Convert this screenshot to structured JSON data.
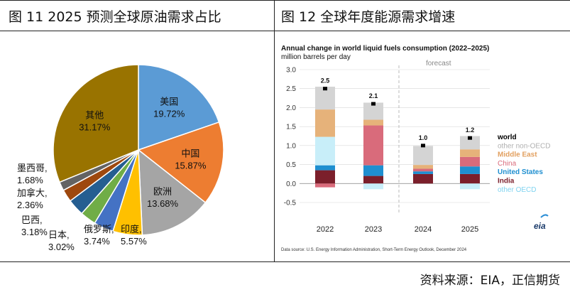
{
  "panels": {
    "left_title": "图 11   2025 预测全球原油需求占比",
    "right_title": "图 12   全球年度能源需求增速"
  },
  "source": "资料来源：EIA，正信期货",
  "chart_data": [
    {
      "type": "pie",
      "slices": [
        {
          "name": "美国",
          "label": "19.72%",
          "value": 19.72,
          "color": "#5b9bd5"
        },
        {
          "name": "中国",
          "label": "15.87%",
          "value": 15.87,
          "color": "#ed7d31"
        },
        {
          "name": "欧洲",
          "label": "13.68%",
          "value": 13.68,
          "color": "#a5a5a5"
        },
        {
          "name": "印度",
          "label": "5.57%",
          "value": 5.57,
          "color": "#ffc000"
        },
        {
          "name": "俄罗斯",
          "label": "3.74%",
          "value": 3.74,
          "color": "#4472c4"
        },
        {
          "name": "日本",
          "label": "3.02%",
          "value": 3.02,
          "color": "#70ad47"
        },
        {
          "name": "巴西",
          "label": "3.18%",
          "value": 3.18,
          "color": "#255e91"
        },
        {
          "name": "加拿大",
          "label": "2.36%",
          "value": 2.36,
          "color": "#9e480e"
        },
        {
          "name": "墨西哥",
          "label": "1.68%",
          "value": 1.68,
          "color": "#636363"
        },
        {
          "name": "其他",
          "label": "31.17%",
          "value": 31.17,
          "color": "#997300"
        }
      ]
    },
    {
      "type": "bar",
      "title": "Annual change in world liquid fuels consumption (2022–2025)",
      "ylabel": "million barrels per day",
      "annotation": "forecast",
      "ylim": [
        -0.5,
        3.0
      ],
      "yticks": [
        "3.0",
        "2.5",
        "2.0",
        "1.5",
        "1.0",
        "0.5",
        "0.0",
        "-0.5"
      ],
      "categories": [
        "2022",
        "2023",
        "2024",
        "2025"
      ],
      "world_labels": [
        "2.5",
        "2.1",
        "1.0",
        "1.2"
      ],
      "world": [
        2.5,
        2.1,
        1.0,
        1.2
      ],
      "series": [
        {
          "name": "India",
          "color": "#7b1f2b",
          "values": [
            0.35,
            0.2,
            0.25,
            0.25
          ]
        },
        {
          "name": "United States",
          "color": "#1f8fd0",
          "values": [
            0.13,
            0.28,
            0.07,
            0.2
          ]
        },
        {
          "name": "China",
          "color": "#d96b7b",
          "values": [
            0,
            1.05,
            0.07,
            0.25
          ]
        },
        {
          "name": "Middle East",
          "color": "#e6b27a",
          "values": [
            0.72,
            0.15,
            0.1,
            0.2
          ]
        },
        {
          "name": "other non-OECD",
          "color": "#d4d4d4",
          "values": [
            0.6,
            0.45,
            0.5,
            0.35
          ]
        },
        {
          "name": "world",
          "color": "#000000",
          "values": [
            2.5,
            2.1,
            1.0,
            1.2
          ]
        }
      ],
      "negatives": [
        {
          "name": "other OECD",
          "color": "#c8eef9",
          "values": [
            0,
            -0.15,
            0,
            -0.15
          ]
        },
        {
          "name": "China",
          "color": "#d96b7b",
          "values": [
            -0.1,
            0,
            0,
            0
          ]
        }
      ],
      "extra_positive": {
        "name": "other OECD",
        "color": "#c8eef9",
        "values": [
          0.75,
          0,
          0,
          0
        ]
      },
      "legend": [
        {
          "name": "world",
          "color": "#000000"
        },
        {
          "name": "other non-OECD",
          "color": "#b0b0b0"
        },
        {
          "name": "Middle East",
          "color": "#e2a060"
        },
        {
          "name": "China",
          "color": "#d96b7b"
        },
        {
          "name": "United States",
          "color": "#1f8fd0"
        },
        {
          "name": "India",
          "color": "#7b1f2b"
        },
        {
          "name": "other OECD",
          "color": "#7fd3f0"
        }
      ],
      "logo": "eia",
      "footnote": "Data source: U.S. Energy Information Administration, Short-Term Energy Outlook, December 2024"
    }
  ]
}
